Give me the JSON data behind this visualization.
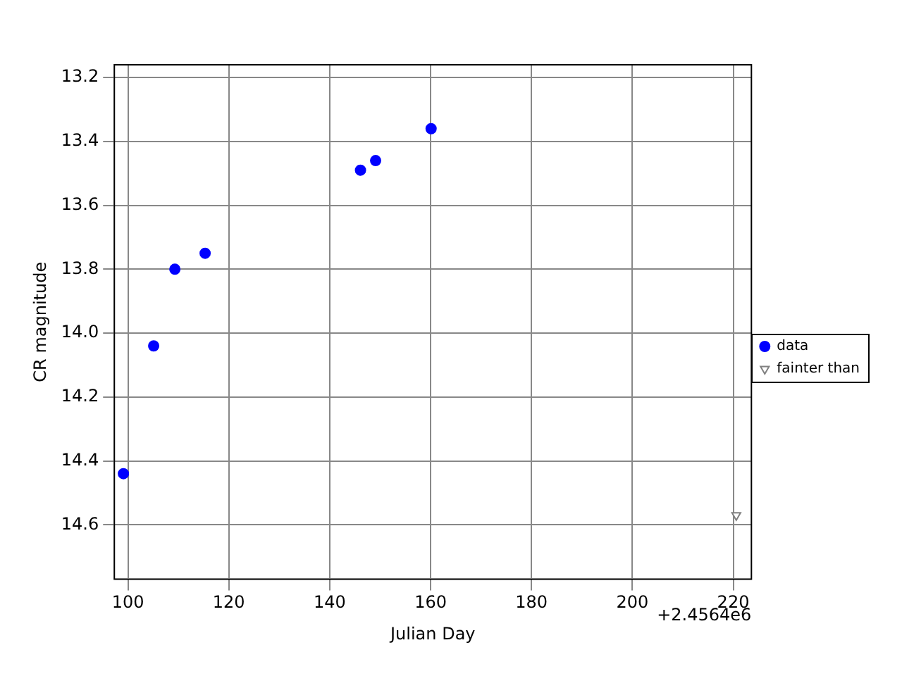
{
  "chart_data": {
    "type": "scatter",
    "xlabel": "Julian Day",
    "ylabel": "CR magnitude",
    "xlim": [
      97.3,
      223.6
    ],
    "xticks": [
      100,
      120,
      140,
      160,
      180,
      200,
      220
    ],
    "ylim": [
      14.77,
      13.16
    ],
    "yticks": [
      13.2,
      13.4,
      13.6,
      13.8,
      {
        "value": 14.0,
        "label": "14.0"
      },
      14.2,
      14.4,
      14.6
    ],
    "grid": true,
    "legend": "right",
    "annotations": [
      "+2.4564e6"
    ],
    "series": [
      {
        "name": "data",
        "color": "#0000ff",
        "marker": "circle",
        "x": [
          99.1,
          105.1,
          109.3,
          115.3,
          146.1,
          149.1,
          160.1
        ],
        "values": [
          14.44,
          14.04,
          13.8,
          13.75,
          13.49,
          13.46,
          13.36
        ]
      },
      {
        "name": "fainter than",
        "color": "#808080",
        "marker": "triangle",
        "x": [
          220.6
        ],
        "values": [
          14.57
        ]
      }
    ]
  }
}
